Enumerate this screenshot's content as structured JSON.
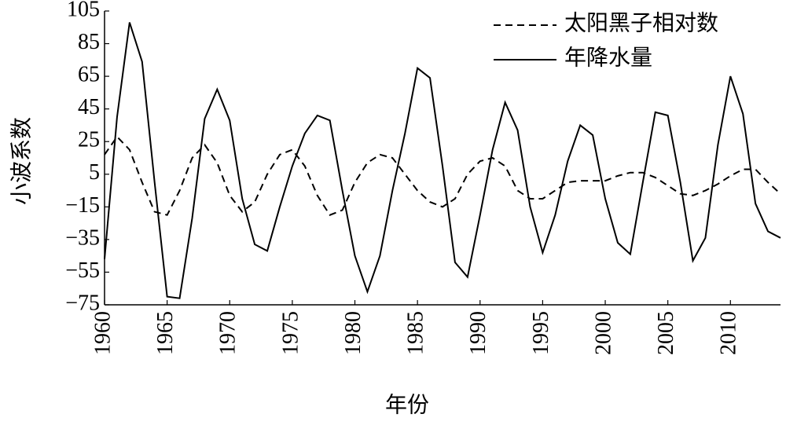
{
  "chart_data": {
    "type": "line",
    "xlabel": "年份",
    "ylabel": "小波系数",
    "x": [
      1960,
      1961,
      1962,
      1963,
      1964,
      1965,
      1966,
      1967,
      1968,
      1969,
      1970,
      1971,
      1972,
      1973,
      1974,
      1975,
      1976,
      1977,
      1978,
      1979,
      1980,
      1981,
      1982,
      1983,
      1984,
      1985,
      1986,
      1987,
      1988,
      1989,
      1990,
      1991,
      1992,
      1993,
      1994,
      1995,
      1996,
      1997,
      1998,
      1999,
      2000,
      2001,
      2002,
      2003,
      2004,
      2005,
      2006,
      2007,
      2008,
      2009,
      2010,
      2011,
      2012,
      2013,
      2014
    ],
    "series": [
      {
        "name": "太阳黑子相对数",
        "color": "#000000",
        "dash": true,
        "values": [
          17,
          28,
          20,
          0,
          -18,
          -20,
          -5,
          15,
          23,
          12,
          -8,
          -18,
          -12,
          5,
          17,
          20,
          10,
          -8,
          -20,
          -17,
          0,
          12,
          17,
          15,
          5,
          -5,
          -12,
          -15,
          -10,
          5,
          13,
          15,
          10,
          -5,
          -10,
          -10,
          -5,
          0,
          1,
          1,
          1,
          4,
          6,
          6,
          3,
          -2,
          -7,
          -8,
          -5,
          -1,
          4,
          8,
          8,
          0,
          -7
        ]
      },
      {
        "name": "年降水量",
        "color": "#000000",
        "dash": false,
        "values": [
          -47,
          40,
          98,
          74,
          0,
          -70,
          -71,
          -22,
          39,
          57,
          38,
          -10,
          -38,
          -42,
          -15,
          10,
          30,
          41,
          38,
          -5,
          -45,
          -67,
          -45,
          -5,
          30,
          70,
          64,
          10,
          -49,
          -58,
          -20,
          20,
          49,
          32,
          -15,
          -43,
          -20,
          13,
          35,
          29,
          -10,
          -37,
          -44,
          0,
          43,
          41,
          0,
          -48,
          -34,
          23,
          65,
          42,
          -13,
          -30,
          -34
        ]
      }
    ],
    "xlim": [
      1960,
      2014
    ],
    "xticks": [
      1960,
      1965,
      1970,
      1975,
      1980,
      1985,
      1990,
      1995,
      2000,
      2005,
      2010
    ],
    "ylim": [
      -75,
      105
    ],
    "yticks": [
      {
        "value": -75,
        "label": "−75"
      },
      {
        "value": -55,
        "label": "−55"
      },
      {
        "value": -35,
        "label": "−35"
      },
      {
        "value": -15,
        "label": "−15"
      },
      5,
      25,
      45,
      65,
      85,
      105
    ],
    "legend": "upper-right"
  }
}
